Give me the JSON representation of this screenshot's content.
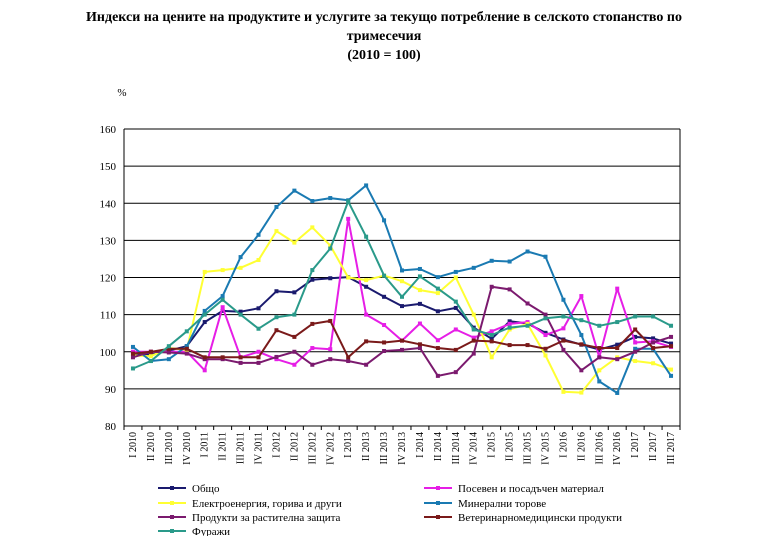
{
  "title_lines": [
    "Индекси на цените на продуктите и услугите за текущо потребление в селското стопанство по",
    "тримесечия",
    "(2010 = 100)"
  ],
  "chart_data": {
    "type": "line",
    "ylabel": "%",
    "xlabel": "",
    "ylim": [
      80,
      160
    ],
    "yticks": [
      80,
      90,
      100,
      110,
      120,
      130,
      140,
      150,
      160
    ],
    "grid": "horizontal",
    "legend_position": "bottom",
    "categories": [
      "I 2010",
      "II 2010",
      "III 2010",
      "IV 2010",
      "I 2011",
      "II 2011",
      "III 2011",
      "IV 2011",
      "I 2012",
      "II 2012",
      "III 2012",
      "IV 2012",
      "I 2013",
      "II 2013",
      "III 2013",
      "IV 2013",
      "I 2014",
      "II 2014",
      "III 2014",
      "IV 2014",
      "I 2015",
      "II 2015",
      "III 2015",
      "IV 2015",
      "I 2016",
      "II 2016",
      "III 2016",
      "IV 2016",
      "I 2017",
      "II 2017",
      "III 2017"
    ],
    "series": [
      {
        "name": "Общо",
        "color": "#1a1a6e",
        "values": [
          99.5,
          99.2,
          100.3,
          101.5,
          108.0,
          111.0,
          110.8,
          111.7,
          116.3,
          116.0,
          119.4,
          119.8,
          120.1,
          117.5,
          114.8,
          112.3,
          112.9,
          110.9,
          111.8,
          106.5,
          103.5,
          108.2,
          107.6,
          105.1,
          103.3,
          101.9,
          100.6,
          101.9,
          104.0,
          103.6,
          102.2
        ]
      },
      {
        "name": "Посевен и посадъчен материал",
        "color": "#e61ee6",
        "values": [
          100.0,
          100.0,
          100.0,
          100.0,
          95.0,
          112.0,
          98.5,
          100.0,
          98.0,
          96.5,
          101.0,
          100.7,
          135.8,
          110.0,
          107.2,
          103.0,
          107.6,
          103.1,
          106.0,
          103.8,
          105.5,
          107.5,
          108.0,
          104.5,
          106.3,
          115.0,
          98.5,
          117.0,
          102.5,
          102.8,
          101.3
        ]
      },
      {
        "name": "Електроенергия, горива и други",
        "color": "#ffff33",
        "values": [
          99.0,
          98.8,
          101.0,
          100.5,
          121.5,
          122.0,
          122.6,
          124.7,
          132.5,
          129.4,
          133.5,
          128.6,
          120.0,
          119.3,
          120.5,
          119.0,
          116.6,
          115.8,
          120.0,
          110.0,
          98.5,
          106.0,
          107.5,
          99.0,
          89.2,
          89.0,
          95.0,
          98.5,
          97.5,
          96.9,
          95.2
        ]
      },
      {
        "name": "Минерални торове",
        "color": "#1a7ab2",
        "values": [
          101.3,
          97.5,
          98.0,
          101.5,
          111.0,
          115.0,
          125.5,
          131.5,
          139.0,
          143.4,
          140.6,
          141.4,
          140.8,
          144.8,
          135.4,
          121.9,
          122.3,
          120.1,
          121.5,
          122.6,
          124.5,
          124.3,
          127.0,
          125.6,
          114.0,
          104.5,
          92.0,
          88.9,
          100.8,
          100.8,
          93.5
        ]
      },
      {
        "name": "Продукти за растителна защита",
        "color": "#7b1a6e",
        "values": [
          98.5,
          100.0,
          99.8,
          99.5,
          98.0,
          98.0,
          97.0,
          97.0,
          98.6,
          100.0,
          96.5,
          98.0,
          97.5,
          96.5,
          100.2,
          100.5,
          101.0,
          93.5,
          94.5,
          99.5,
          117.5,
          116.8,
          113.0,
          110.0,
          100.5,
          95.0,
          98.5,
          98.0,
          100.0,
          102.5,
          104.0
        ]
      },
      {
        "name": "Ветеринарномедицински продукти",
        "color": "#7a1a1a",
        "values": [
          99.5,
          100.0,
          100.8,
          100.8,
          98.5,
          98.5,
          98.5,
          98.5,
          105.8,
          104.0,
          107.5,
          108.3,
          98.5,
          102.8,
          102.5,
          103.0,
          102.0,
          101.0,
          100.5,
          103.0,
          102.8,
          101.8,
          101.8,
          100.8,
          103.0,
          102.0,
          101.0,
          101.0,
          106.0,
          101.0,
          101.5
        ]
      },
      {
        "name": "Фуражи",
        "color": "#2a9a8a",
        "values": [
          95.5,
          97.5,
          101.5,
          105.5,
          110.0,
          114.0,
          110.0,
          106.2,
          109.3,
          110.0,
          122.0,
          127.8,
          140.5,
          131.0,
          120.5,
          114.8,
          120.3,
          117.0,
          113.5,
          106.0,
          104.5,
          106.5,
          107.0,
          109.0,
          109.5,
          108.5,
          107.0,
          108.0,
          109.5,
          109.5,
          107.0
        ]
      }
    ]
  }
}
